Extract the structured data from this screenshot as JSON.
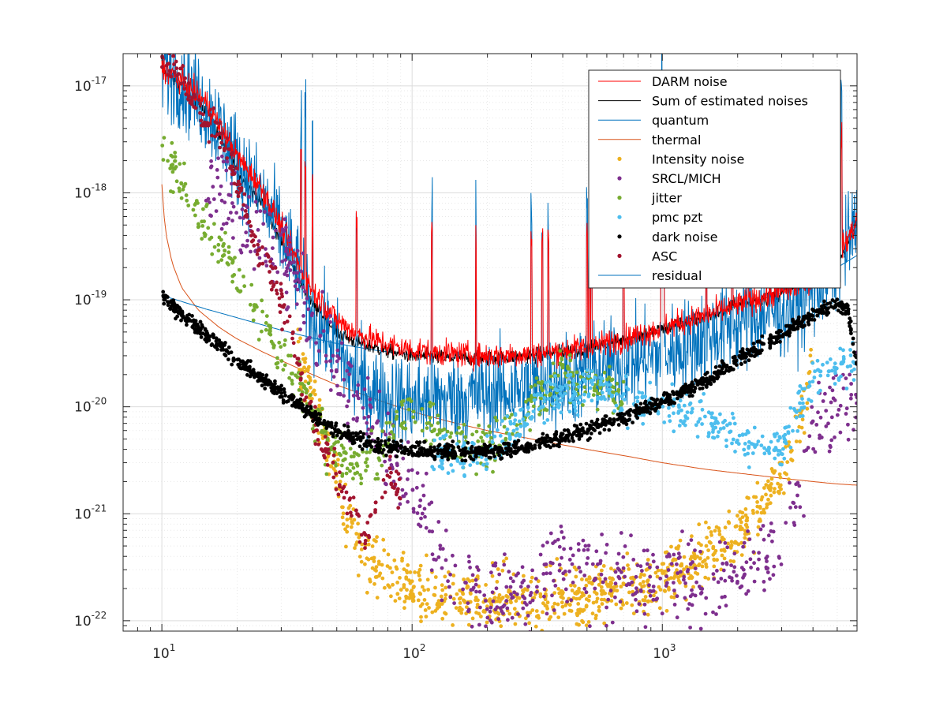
{
  "chart_data": {
    "type": "scatter",
    "title": "",
    "xlabel": "",
    "ylabel": "",
    "xscale": "log",
    "yscale": "log",
    "xlim": [
      7,
      6000
    ],
    "ylim": [
      8e-23,
      2e-17
    ],
    "grid": true,
    "minor_grid": true,
    "legend_position": "top-right",
    "x_ticks": [
      {
        "base": "10",
        "exp": "1",
        "value": 10
      },
      {
        "base": "10",
        "exp": "2",
        "value": 100
      },
      {
        "base": "10",
        "exp": "3",
        "value": 1000
      }
    ],
    "y_ticks": [
      {
        "base": "10",
        "exp": "-17",
        "value": 1e-17
      },
      {
        "base": "10",
        "exp": "-18",
        "value": 1e-18
      },
      {
        "base": "10",
        "exp": "-19",
        "value": 1e-19
      },
      {
        "base": "10",
        "exp": "-20",
        "value": 1e-20
      },
      {
        "base": "10",
        "exp": "-21",
        "value": 1e-21
      },
      {
        "base": "10",
        "exp": "-22",
        "value": 1e-22
      }
    ],
    "series": [
      {
        "name": "DARM noise",
        "kind": "line",
        "color": "#ff0000",
        "x": [
          10,
          12,
          15,
          20,
          25,
          30,
          35,
          40,
          50,
          60,
          80,
          100,
          150,
          200,
          300,
          500,
          700,
          1000,
          1500,
          2000,
          3000,
          4000,
          5000,
          6000
        ],
        "y": [
          1.5e-17,
          1.1e-17,
          7e-18,
          2.2e-18,
          1.1e-18,
          4.8e-19,
          2.2e-19,
          1.2e-19,
          6.5e-20,
          4.8e-20,
          3.8e-20,
          3.4e-20,
          3.1e-20,
          3e-20,
          3.1e-20,
          3.6e-20,
          4.3e-20,
          5.5e-20,
          7.2e-20,
          9e-20,
          1.2e-19,
          1.6e-19,
          2.4e-19,
          5.5e-19
        ]
      },
      {
        "name": "Sum of estimated noises",
        "kind": "line",
        "color": "#000000",
        "x": [
          10,
          12,
          15,
          20,
          25,
          30,
          35,
          40,
          50,
          60,
          80,
          100,
          150,
          200,
          300,
          500,
          700,
          1000,
          1500,
          2000,
          3000,
          4000,
          5000,
          6000
        ],
        "y": [
          1.4e-17,
          1e-17,
          6e-18,
          1.6e-18,
          8e-19,
          3.6e-19,
          1.6e-19,
          9e-20,
          5e-20,
          4e-20,
          3.3e-20,
          3e-20,
          2.85e-20,
          2.85e-20,
          3e-20,
          3.5e-20,
          4.2e-20,
          5.3e-20,
          7e-20,
          8.8e-20,
          1.15e-19,
          1.5e-19,
          2.2e-19,
          5e-19
        ]
      },
      {
        "name": "quantum",
        "kind": "line",
        "color": "#0072bd",
        "x": [
          10,
          15,
          20,
          30,
          40,
          50,
          70,
          100,
          150,
          200,
          300,
          500,
          700,
          1000,
          1500,
          2000,
          3000,
          4000,
          5000,
          6000
        ],
        "y": [
          1.1e-19,
          8.2e-20,
          6.8e-20,
          5.2e-20,
          4.4e-20,
          3.9e-20,
          3.4e-20,
          3.05e-20,
          2.85e-20,
          2.85e-20,
          3e-20,
          3.5e-20,
          4.2e-20,
          5.3e-20,
          7e-20,
          8.8e-20,
          1.15e-19,
          1.5e-19,
          2e-19,
          2.6e-19
        ]
      },
      {
        "name": "thermal",
        "kind": "line",
        "color": "#d95319",
        "x": [
          10,
          10.3,
          11,
          12,
          14,
          17,
          20,
          25,
          30,
          40,
          50,
          70,
          100,
          150,
          200,
          300,
          500,
          700,
          1000,
          1500,
          2000,
          3000,
          4000,
          5000,
          6000
        ],
        "y": [
          1.2e-18,
          4.5e-19,
          2.2e-19,
          1.3e-19,
          8e-20,
          5.5e-20,
          4.3e-20,
          3.3e-20,
          2.7e-20,
          2e-20,
          1.6e-20,
          1.2e-20,
          9e-21,
          7e-21,
          6e-21,
          5e-21,
          4e-21,
          3.5e-21,
          3e-21,
          2.6e-21,
          2.4e-21,
          2.15e-21,
          2e-21,
          1.9e-21,
          1.85e-21
        ]
      },
      {
        "name": "Intensity noise",
        "kind": "points",
        "color": "#edb120",
        "x": [
          35,
          40,
          45,
          50,
          55,
          60,
          70,
          80,
          100,
          120,
          150,
          200,
          250,
          300,
          400,
          500,
          700,
          1000,
          1300,
          1600,
          2000,
          2500,
          3000,
          3500,
          4000
        ],
        "y": [
          3e-20,
          1.5e-20,
          5e-21,
          2e-21,
          1e-21,
          6e-22,
          3.5e-22,
          2.5e-22,
          2e-22,
          1.8e-22,
          1.7e-22,
          1.6e-22,
          1.5e-22,
          1.5e-22,
          1.6e-22,
          1.7e-22,
          2e-22,
          2.6e-22,
          3.4e-22,
          4.5e-22,
          6.5e-22,
          1.1e-21,
          2.2e-21,
          6e-21,
          2.5e-20
        ]
      },
      {
        "name": "SRCL/MICH",
        "kind": "points",
        "color": "#7e2f8e",
        "x": [
          15,
          20,
          25,
          30,
          35,
          40,
          50,
          60,
          70,
          80,
          100,
          120,
          150,
          200,
          300,
          400,
          500,
          700,
          1000,
          1500,
          2000,
          3000,
          4000,
          5000,
          6000
        ],
        "y": [
          1.5e-18,
          6e-19,
          3.5e-19,
          2.5e-19,
          1.2e-19,
          6e-20,
          2.5e-20,
          1.2e-20,
          6e-21,
          3.5e-21,
          1.8e-21,
          7e-22,
          2e-22,
          1.8e-22,
          2.2e-22,
          4e-22,
          3e-22,
          2.5e-22,
          2.2e-22,
          2.5e-22,
          3e-22,
          5e-22,
          6e-21,
          1e-20,
          1.2e-20
        ]
      },
      {
        "name": "jitter",
        "kind": "points",
        "color": "#77ac30",
        "x": [
          10,
          11,
          12,
          14,
          16,
          18,
          20,
          22,
          25,
          28,
          30,
          35,
          40,
          45,
          50,
          55,
          60,
          70,
          80,
          90,
          100,
          120,
          150,
          200,
          250,
          300,
          350,
          400,
          500,
          600,
          700
        ],
        "y": [
          2.5e-18,
          1.8e-18,
          1.2e-18,
          6e-19,
          4e-19,
          2.8e-19,
          2e-19,
          1.1e-19,
          6e-20,
          4e-20,
          3.2e-20,
          1.8e-20,
          9e-21,
          5e-21,
          4e-21,
          3.5e-21,
          3e-21,
          3e-21,
          5e-21,
          8e-21,
          9e-21,
          7e-21,
          4e-21,
          4.5e-21,
          6e-21,
          1e-20,
          1.5e-20,
          2e-20,
          1.8e-20,
          1.5e-20,
          1.2e-20
        ]
      },
      {
        "name": "pmc pzt",
        "kind": "points",
        "color": "#4dbeee",
        "x": [
          120,
          150,
          180,
          200,
          250,
          300,
          400,
          500,
          600,
          700,
          800,
          1000,
          1200,
          1500,
          1800,
          2000,
          2500,
          3000,
          3500,
          4000,
          5000,
          6000
        ],
        "y": [
          3.5e-21,
          3.2e-21,
          3.5e-21,
          4e-21,
          6e-21,
          9e-21,
          1.3e-20,
          1.6e-20,
          1.4e-20,
          1.2e-20,
          1.1e-20,
          1e-20,
          9e-21,
          8e-21,
          6e-21,
          5e-21,
          4e-21,
          4e-21,
          1e-20,
          1.8e-20,
          2.3e-20,
          2.8e-20
        ]
      },
      {
        "name": "dark noise",
        "kind": "points",
        "color": "#000000",
        "x": [
          10,
          12,
          14,
          16,
          18,
          20,
          25,
          30,
          35,
          40,
          50,
          60,
          70,
          80,
          100,
          120,
          150,
          200,
          250,
          300,
          400,
          500,
          700,
          1000,
          1500,
          2000,
          3000,
          4000,
          5000,
          5500,
          6000
        ],
        "y": [
          1.05e-19,
          7.5e-20,
          5.5e-20,
          4.2e-20,
          3.4e-20,
          2.7e-20,
          1.8e-20,
          1.35e-20,
          1.05e-20,
          8.5e-21,
          6e-21,
          5e-21,
          4.4e-21,
          4.2e-21,
          4e-21,
          3.9e-21,
          3.8e-21,
          3.8e-21,
          4e-21,
          4.3e-21,
          5.2e-21,
          6.2e-21,
          8e-21,
          1.1e-20,
          1.8e-20,
          2.7e-20,
          4.8e-20,
          7.2e-20,
          9.3e-20,
          8e-20,
          2.4e-20
        ]
      },
      {
        "name": "ASC",
        "kind": "points",
        "color": "#a2142f",
        "x": [
          10,
          11,
          12,
          13,
          14,
          15,
          16,
          18,
          20,
          22,
          25,
          28,
          30,
          33,
          35,
          38,
          40,
          45,
          50,
          55,
          60,
          65,
          70,
          80,
          90
        ],
        "y": [
          2e-17,
          1.5e-17,
          1.2e-17,
          8e-18,
          6e-18,
          4e-18,
          5e-18,
          3e-18,
          1.4e-18,
          5e-19,
          2.5e-19,
          1.5e-19,
          9e-20,
          5e-20,
          2.5e-20,
          1.2e-20,
          8e-21,
          4e-21,
          2.5e-21,
          1.3e-21,
          9e-22,
          6e-22,
          1e-21,
          2.5e-21,
          1.5e-21
        ]
      },
      {
        "name": "residual",
        "kind": "line",
        "color": "#0072bd",
        "x": [
          10,
          12,
          15,
          20,
          25,
          30,
          35,
          40,
          50,
          60,
          80,
          100,
          150,
          200,
          300,
          500,
          700,
          1000,
          1500,
          2000,
          3000,
          4000,
          5000,
          6000
        ],
        "y": [
          1.5e-17,
          1.1e-17,
          6.5e-18,
          2e-18,
          9e-19,
          4.2e-19,
          1.8e-19,
          7e-20,
          3.5e-20,
          1.6e-20,
          1.2e-20,
          1.1e-20,
          1.2e-20,
          1.3e-20,
          1.5e-20,
          2e-20,
          2.6e-20,
          3e-20,
          4.5e-20,
          6e-20,
          8e-20,
          1.2e-19,
          2.2e-19,
          5e-19
        ]
      }
    ]
  }
}
